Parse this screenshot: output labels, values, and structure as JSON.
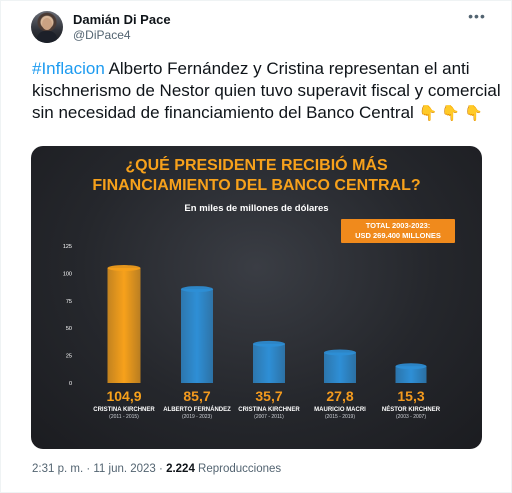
{
  "author": {
    "name": "Damián Di Pace",
    "handle": "@DiPace4"
  },
  "more_icon": "more-horizontal-icon",
  "tweet": {
    "hashtag": "#Inflacion",
    "text": " Alberto Fernández y Cristina representan el anti kischnerismo de Nestor quien tuvo superavit fiscal y comercial sin necesidad de financiamiento del Banco Central ",
    "emojis": "👇 👇 👇"
  },
  "media": {
    "title_line1": "¿QUÉ PRESIDENTE RECIBIÓ MÁS",
    "title_line2": "FINANCIAMIENTO DEL BANCO CENTRAL?",
    "subtitle": "En miles de millones de dólares",
    "total_label": "TOTAL 2003-2023:",
    "total_value": "USD 269.400 MILLONES"
  },
  "chart_data": {
    "type": "bar",
    "categories": [
      "CRISTINA KIRCHNER",
      "ALBERTO FERNÁNDEZ",
      "CRISTINA KIRCHNER",
      "MAURICIO MACRI",
      "NÉSTOR KIRCHNER"
    ],
    "periods": [
      "(2011 - 2015)",
      "(2019 - 2023)",
      "(2007 - 2011)",
      "(2015 - 2019)",
      "(2003 - 2007)"
    ],
    "values": [
      104.9,
      85.7,
      35.7,
      27.8,
      15.3
    ],
    "value_labels": [
      "104,9",
      "85,7",
      "35,7",
      "27,8",
      "15,3"
    ],
    "yticks": [
      0,
      25,
      50,
      75,
      100,
      125
    ],
    "ylim": [
      0,
      125
    ],
    "colors": [
      "#f7a11b",
      "#2e8fd6",
      "#2e8fd6",
      "#2e8fd6",
      "#2e8fd6"
    ],
    "grid": false
  },
  "footer": {
    "time": "2:31 p. m.",
    "separator": " · ",
    "date": "11 jun. 2023",
    "views_count": "2.224",
    "views_label": " Reproducciones"
  }
}
